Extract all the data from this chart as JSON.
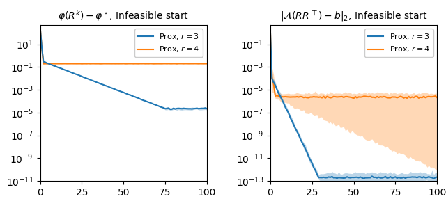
{
  "title_left": "$\\varphi(R^k) - \\varphi^\\star$, Infeasible start",
  "title_right": "$|\\mathcal{A}(RR^\\top) - b|_2$, Infeasible start",
  "xlim": [
    0,
    100
  ],
  "x_ticks": [
    0,
    25,
    50,
    75,
    100
  ],
  "left_ylim": [
    1e-11,
    500.0
  ],
  "right_ylim": [
    1e-13,
    5
  ],
  "blue_color": "#1f77b4",
  "orange_color": "#ff7f0e",
  "fill_alpha": 0.3,
  "legend_labels": [
    "Prox, $r = 3$",
    "Prox, $r = 4$"
  ],
  "n_points": 101,
  "seed": 0
}
